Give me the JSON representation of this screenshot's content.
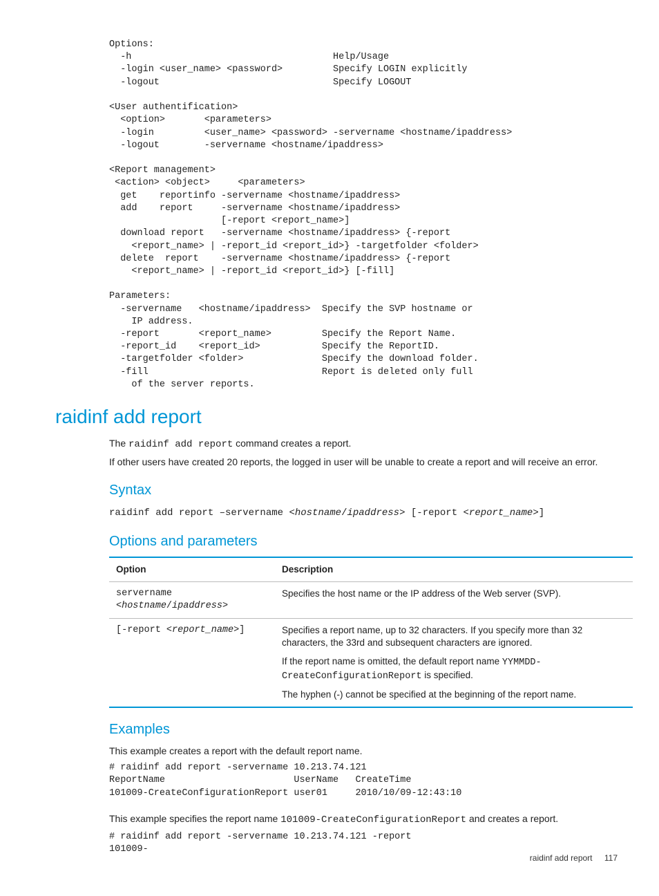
{
  "colors": {
    "accent": "#0096d6",
    "text": "#222222",
    "rule": "#bbbbbb",
    "background": "#ffffff"
  },
  "typography": {
    "body_font": "Segoe UI / Helvetica Neue",
    "mono_font": "Courier New",
    "body_size_pt": 10.5,
    "heading_size_pt": 21,
    "subheading_size_pt": 15
  },
  "code_block_1": "Options:\n  -h                                    Help/Usage\n  -login <user_name> <password>         Specify LOGIN explicitly\n  -logout                               Specify LOGOUT\n\n<User authentification>\n  <option>       <parameters>\n  -login         <user_name> <password> -servername <hostname/ipaddress>\n  -logout        -servername <hostname/ipaddress>\n\n<Report management>\n <action> <object>     <parameters>\n  get    reportinfo -servername <hostname/ipaddress>\n  add    report     -servername <hostname/ipaddress>\n                    [-report <report_name>]\n  download report   -servername <hostname/ipaddress> {-report\n    <report_name> | -report_id <report_id>} -targetfolder <folder>\n  delete  report    -servername <hostname/ipaddress> {-report\n    <report_name> | -report_id <report_id>} [-fill]\n\nParameters:\n  -servername   <hostname/ipaddress>  Specify the SVP hostname or\n    IP address.\n  -report       <report_name>         Specify the Report Name.\n  -report_id    <report_id>           Specify the ReportID.\n  -targetfolder <folder>              Specify the download folder.\n  -fill                               Report is deleted only full\n    of the server reports.",
  "h1": "raidinf add report",
  "intro": {
    "p1a": "The ",
    "p1_cmd": "raidinf add report",
    "p1b": " command creates a report.",
    "p2": "If other users have created 20 reports, the logged in user will be unable to create a report and will receive an error."
  },
  "syntax": {
    "heading": "Syntax",
    "line_pre": "raidinf add report –servername <",
    "line_it1": "hostname",
    "line_mid1": "/",
    "line_it2": "ipaddress",
    "line_mid2": "> [-report <",
    "line_it3": "report_name",
    "line_post": ">]"
  },
  "opts": {
    "heading": "Options and parameters",
    "columns": [
      "Option",
      "Description"
    ],
    "rows": [
      {
        "opt_pre": "servername\n<",
        "opt_it1": "hostname",
        "opt_mid": "/",
        "opt_it2": "ipaddress",
        "opt_post": ">",
        "desc_p1": "Specifies the host name or the IP address of the Web server (SVP)."
      },
      {
        "opt_pre": "[-report <",
        "opt_it1": "report_name",
        "opt_post": ">]",
        "desc_p1": "Specifies a report name, up to 32 characters. If you specify more than 32 characters, the 33rd and subsequent characters are ignored.",
        "desc_p2a": "If the report name is omitted, the default report name ",
        "desc_p2_code": "YYMMDD-CreateConfigurationReport",
        "desc_p2b": " is specified.",
        "desc_p3": "The hyphen (-) cannot be specified at the beginning of the report name."
      }
    ]
  },
  "examples": {
    "heading": "Examples",
    "p1": "This example creates a report with the default report name.",
    "code1": "# raidinf add report -servername 10.213.74.121\nReportName                       UserName   CreateTime\n101009-CreateConfigurationReport user01     2010/10/09-12:43:10",
    "p2a": "This example specifies the report name ",
    "p2_code": "101009-CreateConfigurationReport",
    "p2b": " and creates a report.",
    "code2": "# raidinf add report -servername 10.213.74.121 -report\n101009-"
  },
  "footer": {
    "title": "raidinf add report",
    "page": "117"
  }
}
